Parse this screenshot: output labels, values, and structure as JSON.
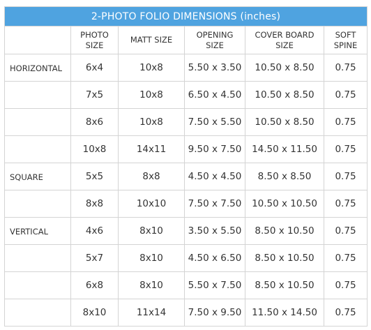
{
  "title": "2-PHOTO FOLIO DIMENSIONS (inches)",
  "headers": [
    {
      "lines": [
        ""
      ]
    },
    {
      "lines": [
        "PHOTO",
        "SIZE"
      ]
    },
    {
      "lines": [
        "MATT SIZE"
      ]
    },
    {
      "lines": [
        "OPENING",
        "SIZE"
      ]
    },
    {
      "lines": [
        "COVER BOARD",
        "SIZE"
      ]
    },
    {
      "lines": [
        "SOFT",
        "SPINE"
      ]
    }
  ],
  "rows": [
    {
      "group": "HORIZONTAL",
      "photo": "6x4",
      "matt": "10x8",
      "opening": "5.50 x 3.50",
      "cover": "10.50 x 8.50",
      "spine": "0.75"
    },
    {
      "group": "",
      "photo": "7x5",
      "matt": "10x8",
      "opening": "6.50 x 4.50",
      "cover": "10.50 x 8.50",
      "spine": "0.75"
    },
    {
      "group": "",
      "photo": "8x6",
      "matt": "10x8",
      "opening": "7.50 x 5.50",
      "cover": "10.50 x 8.50",
      "spine": "0.75"
    },
    {
      "group": "",
      "photo": "10x8",
      "matt": "14x11",
      "opening": "9.50 x 7.50",
      "cover": "14.50 x 11.50",
      "spine": "0.75"
    },
    {
      "group": "SQUARE",
      "photo": "5x5",
      "matt": "8x8",
      "opening": "4.50 x 4.50",
      "cover": "8.50 x 8.50",
      "spine": "0.75"
    },
    {
      "group": "",
      "photo": "8x8",
      "matt": "10x10",
      "opening": "7.50 x 7.50",
      "cover": "10.50 x 10.50",
      "spine": "0.75"
    },
    {
      "group": "VERTICAL",
      "photo": "4x6",
      "matt": "8x10",
      "opening": "3.50 x 5.50",
      "cover": "8.50 x 10.50",
      "spine": "0.75"
    },
    {
      "group": "",
      "photo": "5x7",
      "matt": "8x10",
      "opening": "4.50 x 6.50",
      "cover": "8.50 x 10.50",
      "spine": "0.75"
    },
    {
      "group": "",
      "photo": "6x8",
      "matt": "8x10",
      "opening": "5.50 x 7.50",
      "cover": "8.50 x 10.50",
      "spine": "0.75"
    },
    {
      "group": "",
      "photo": "8x10",
      "matt": "11x14",
      "opening": "7.50 x 9.50",
      "cover": "11.50 x 14.50",
      "spine": "0.75"
    }
  ],
  "colors": {
    "header_bar": "#4fa3e0",
    "header_text": "#ffffff",
    "grid_line": "#d4d4d4",
    "body_text": "#333333"
  }
}
